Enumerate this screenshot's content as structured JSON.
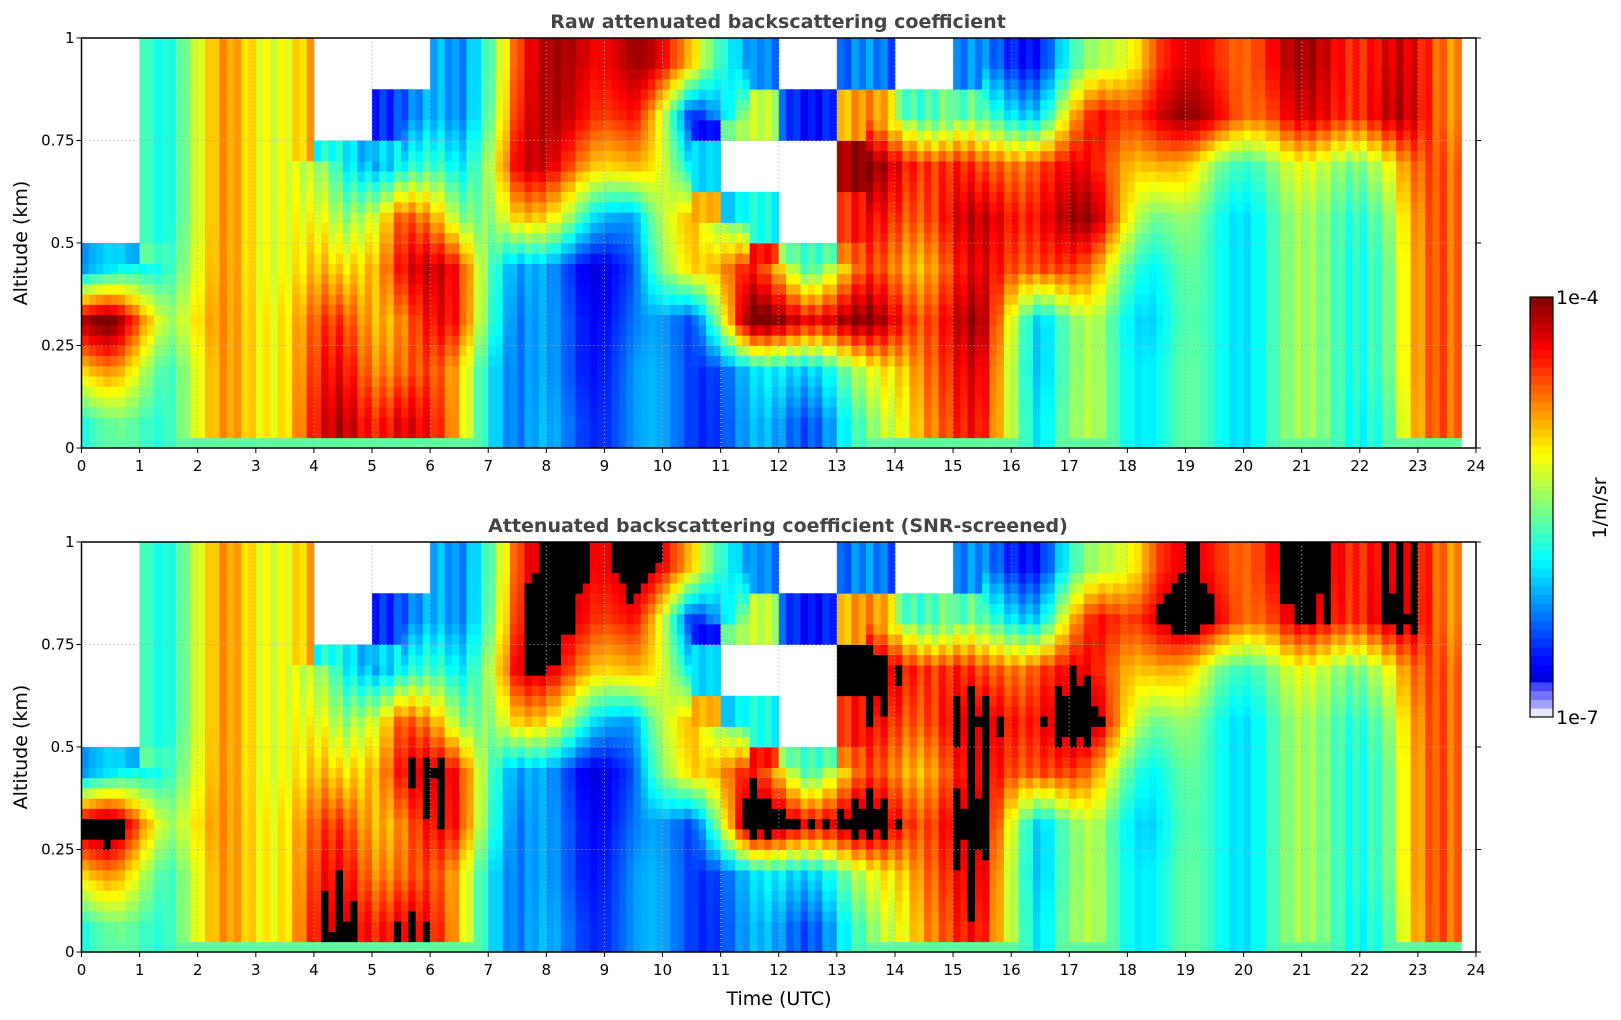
{
  "chart_data": [
    {
      "type": "heatmap",
      "title": "Raw attenuated backscattering coefficient",
      "xlabel": "",
      "ylabel": "Altitude (km)",
      "xlim": [
        0,
        24
      ],
      "ylim": [
        0,
        1
      ],
      "xticks": [
        "0",
        "1",
        "2",
        "3",
        "4",
        "5",
        "6",
        "7",
        "8",
        "9",
        "10",
        "11",
        "12",
        "13",
        "14",
        "15",
        "16",
        "17",
        "18",
        "19",
        "20",
        "21",
        "22",
        "23",
        "24"
      ],
      "yticks": [
        "0",
        "0.25",
        "0.5",
        "0.75",
        "1"
      ],
      "grid": true,
      "screened": false
    },
    {
      "type": "heatmap",
      "title": "Attenuated backscattering coefficient (SNR-screened)",
      "xlabel": "Time (UTC)",
      "ylabel": "Altitude (km)",
      "xlim": [
        0,
        24
      ],
      "ylim": [
        0,
        1
      ],
      "xticks": [
        "0",
        "1",
        "2",
        "3",
        "4",
        "5",
        "6",
        "7",
        "8",
        "9",
        "10",
        "11",
        "12",
        "13",
        "14",
        "15",
        "16",
        "17",
        "18",
        "19",
        "20",
        "21",
        "22",
        "23",
        "24"
      ],
      "yticks": [
        "0",
        "0.25",
        "0.5",
        "0.75",
        "1"
      ],
      "grid": true,
      "screened": true,
      "saturation_log10": -4.3
    }
  ],
  "field": {
    "description_units": "log10 of backscatter (1/m/sr); null = no data",
    "time_hours": [
      0.5,
      1.5,
      2.5,
      3.5,
      4.5,
      5.5,
      6.5,
      7.5,
      8.5,
      9.5,
      10.5,
      11.5,
      12.5,
      13.5,
      14.5,
      15.5,
      16.5,
      17.5,
      18.5,
      19.5,
      20.5,
      21.5,
      22.5,
      23.35
    ],
    "altitude_km": [
      0.06,
      0.19,
      0.31,
      0.44,
      0.56,
      0.69,
      0.81,
      0.94
    ],
    "data_end_hour": 23.72,
    "log10_values": [
      [
        -5.8,
        -5.0,
        -4.1,
        -6.2,
        null,
        null,
        null,
        null
      ],
      [
        -5.5,
        -5.5,
        -5.2,
        -5.5,
        -5.6,
        -5.6,
        -5.6,
        -5.6
      ],
      [
        -5.0,
        -5.0,
        -5.0,
        -5.0,
        -5.0,
        -5.0,
        -5.0,
        -5.0
      ],
      [
        -4.9,
        -4.9,
        -4.9,
        -5.0,
        -5.0,
        -5.0,
        -5.0,
        -5.0
      ],
      [
        -4.3,
        -4.5,
        -4.7,
        -5.2,
        -5.6,
        -6.0,
        null,
        null
      ],
      [
        -4.2,
        -4.6,
        -4.7,
        -4.3,
        -4.5,
        -5.8,
        -6.3,
        null
      ],
      [
        -5.0,
        -5.0,
        -4.5,
        -4.5,
        -5.5,
        -6.0,
        -6.3,
        -6.3
      ],
      [
        -6.3,
        -6.3,
        -6.3,
        -6.2,
        -5.0,
        -4.3,
        -4.5,
        -4.6
      ],
      [
        -6.3,
        -6.4,
        -6.4,
        -6.5,
        -5.5,
        -4.6,
        -4.2,
        -4.1
      ],
      [
        -6.3,
        -6.3,
        -6.4,
        -6.5,
        -6.3,
        -5.0,
        -4.5,
        -4.2
      ],
      [
        -6.3,
        -6.3,
        -6.3,
        -4.8,
        -4.7,
        -5.8,
        -6.4,
        -4.8
      ],
      [
        -6.3,
        -6.2,
        -4.1,
        -4.6,
        -6.0,
        null,
        -5.5,
        -6.4
      ],
      [
        -6.2,
        -5.8,
        -4.1,
        -5.5,
        null,
        null,
        -6.4,
        null
      ],
      [
        -5.8,
        -5.5,
        -4.2,
        -4.8,
        -4.6,
        -4.2,
        -5.0,
        -6.4
      ],
      [
        -4.6,
        -4.5,
        -4.4,
        -4.7,
        -4.4,
        -4.3,
        -5.5,
        null
      ],
      [
        -4.6,
        -4.5,
        -4.3,
        -4.5,
        -4.4,
        -4.8,
        -5.8,
        -6.4
      ],
      [
        -5.8,
        -5.9,
        -5.9,
        -4.4,
        -4.2,
        -4.4,
        -5.8,
        -6.4
      ],
      [
        -5.5,
        -5.5,
        -5.5,
        -5.0,
        -4.3,
        -4.6,
        -4.5,
        -5.5
      ],
      [
        -5.8,
        -5.8,
        -5.9,
        -5.8,
        -5.5,
        -4.8,
        -4.2,
        -4.5
      ],
      [
        -5.8,
        -5.8,
        -5.8,
        -5.8,
        -5.8,
        -5.5,
        -4.3,
        -4.5
      ],
      [
        -5.7,
        -5.7,
        -5.7,
        -5.7,
        -5.7,
        -5.5,
        -4.6,
        -4.4
      ],
      [
        -5.5,
        -5.5,
        -5.5,
        -5.5,
        -5.5,
        -5.3,
        -4.3,
        -4.2
      ],
      [
        -5.8,
        -5.7,
        -5.7,
        -5.7,
        -5.6,
        -5.3,
        -4.3,
        -4.4
      ],
      [
        -4.5,
        -4.5,
        -4.5,
        -4.5,
        -4.5,
        -4.5,
        -4.6,
        -4.6
      ]
    ]
  },
  "colorbar": {
    "max_label": "1e-4",
    "min_label": "1e-7",
    "unit_label": "1/m/sr",
    "range_log10": [
      -7,
      -4
    ],
    "colormap": "jet",
    "low_end_color": "#e6e6fa",
    "saturated_color": "#000000"
  }
}
